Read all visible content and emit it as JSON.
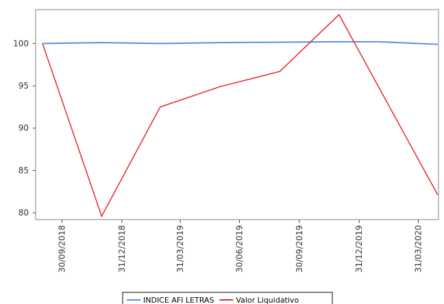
{
  "colors": {
    "background": "#ffffff",
    "plot_border": "#808080",
    "axis": "#404040",
    "legend_border": "#000000"
  },
  "chart_data": {
    "type": "line",
    "title": "",
    "xlabel": "",
    "ylabel": "",
    "x": [
      "30/09/2018",
      "31/12/2018",
      "31/03/2019",
      "30/06/2019",
      "30/09/2019",
      "31/12/2019",
      "31/03/2020"
    ],
    "x_tick_labels": [
      "30/09/2018",
      "31/12/2018",
      "31/03/2019",
      "30/06/2019",
      "30/09/2019",
      "31/12/2019",
      "31/03/2020"
    ],
    "y_ticks": [
      80,
      85,
      90,
      95,
      100
    ],
    "ylim": [
      79.2,
      104
    ],
    "grid": false,
    "legend_position": "bottom",
    "series": [
      {
        "name": "INDICE AFI LETRAS",
        "color": "#5b8dee",
        "points": [
          {
            "x": "2018-08-31",
            "y": 100.0
          },
          {
            "x": "2018-11-30",
            "y": 100.1
          },
          {
            "x": "2019-02-28",
            "y": 100.0
          },
          {
            "x": "2019-05-31",
            "y": 100.1
          },
          {
            "x": "2019-08-31",
            "y": 100.15
          },
          {
            "x": "2019-11-30",
            "y": 100.2
          },
          {
            "x": "2020-01-31",
            "y": 100.2
          },
          {
            "x": "2020-04-30",
            "y": 99.9
          }
        ]
      },
      {
        "name": "Valor Liquidativo",
        "color": "#e8262b",
        "points": [
          {
            "x": "2018-08-31",
            "y": 100.0
          },
          {
            "x": "2018-11-30",
            "y": 79.6
          },
          {
            "x": "2019-02-28",
            "y": 92.5
          },
          {
            "x": "2019-05-31",
            "y": 94.9
          },
          {
            "x": "2019-08-31",
            "y": 96.7
          },
          {
            "x": "2019-11-30",
            "y": 103.4
          },
          {
            "x": "2020-04-30",
            "y": 82.1
          }
        ]
      }
    ]
  }
}
